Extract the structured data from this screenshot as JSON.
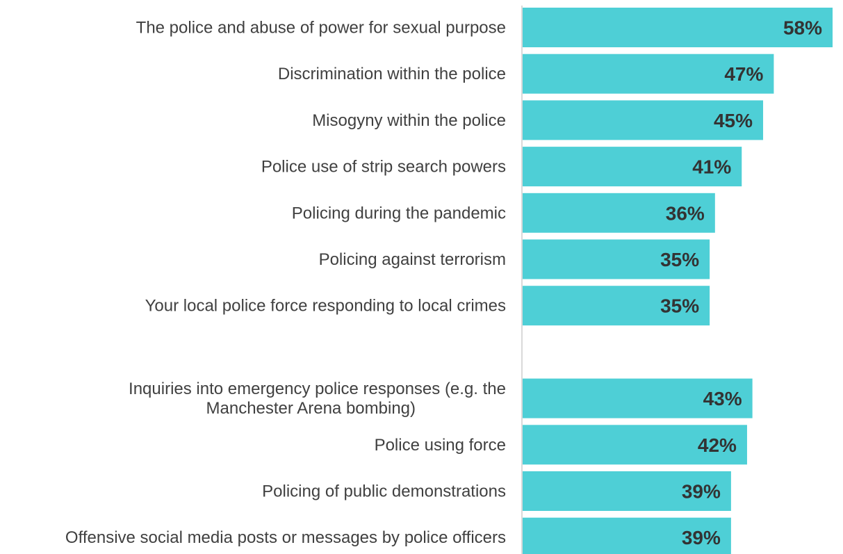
{
  "chart_data": {
    "type": "bar",
    "orientation": "horizontal",
    "categories": [
      [
        "The police and abuse of power for sexual purpose"
      ],
      [
        "Discrimination within the police"
      ],
      [
        "Misogyny within the police"
      ],
      [
        "Police use of strip search powers"
      ],
      [
        "Policing during the pandemic"
      ],
      [
        "Policing against terrorism"
      ],
      [
        "Your local police force responding to local crimes"
      ],
      [],
      [
        "Inquiries into emergency police responses (e.g. the",
        "Manchester Arena bombing)"
      ],
      [
        "Police using force"
      ],
      [
        "Policing of public demonstrations"
      ],
      [
        "Offensive social media posts or messages by police officers"
      ]
    ],
    "values": [
      58,
      47,
      45,
      41,
      36,
      35,
      35,
      null,
      43,
      42,
      39,
      39
    ],
    "value_labels": [
      "58%",
      "47%",
      "45%",
      "41%",
      "36%",
      "35%",
      "35%",
      "",
      "43%",
      "42%",
      "39%",
      "39%"
    ],
    "bar_color": "#4ECFD6",
    "axis_color": "#D9D9D9",
    "xlim": [
      0,
      58
    ],
    "grid": false,
    "legend": "none"
  }
}
